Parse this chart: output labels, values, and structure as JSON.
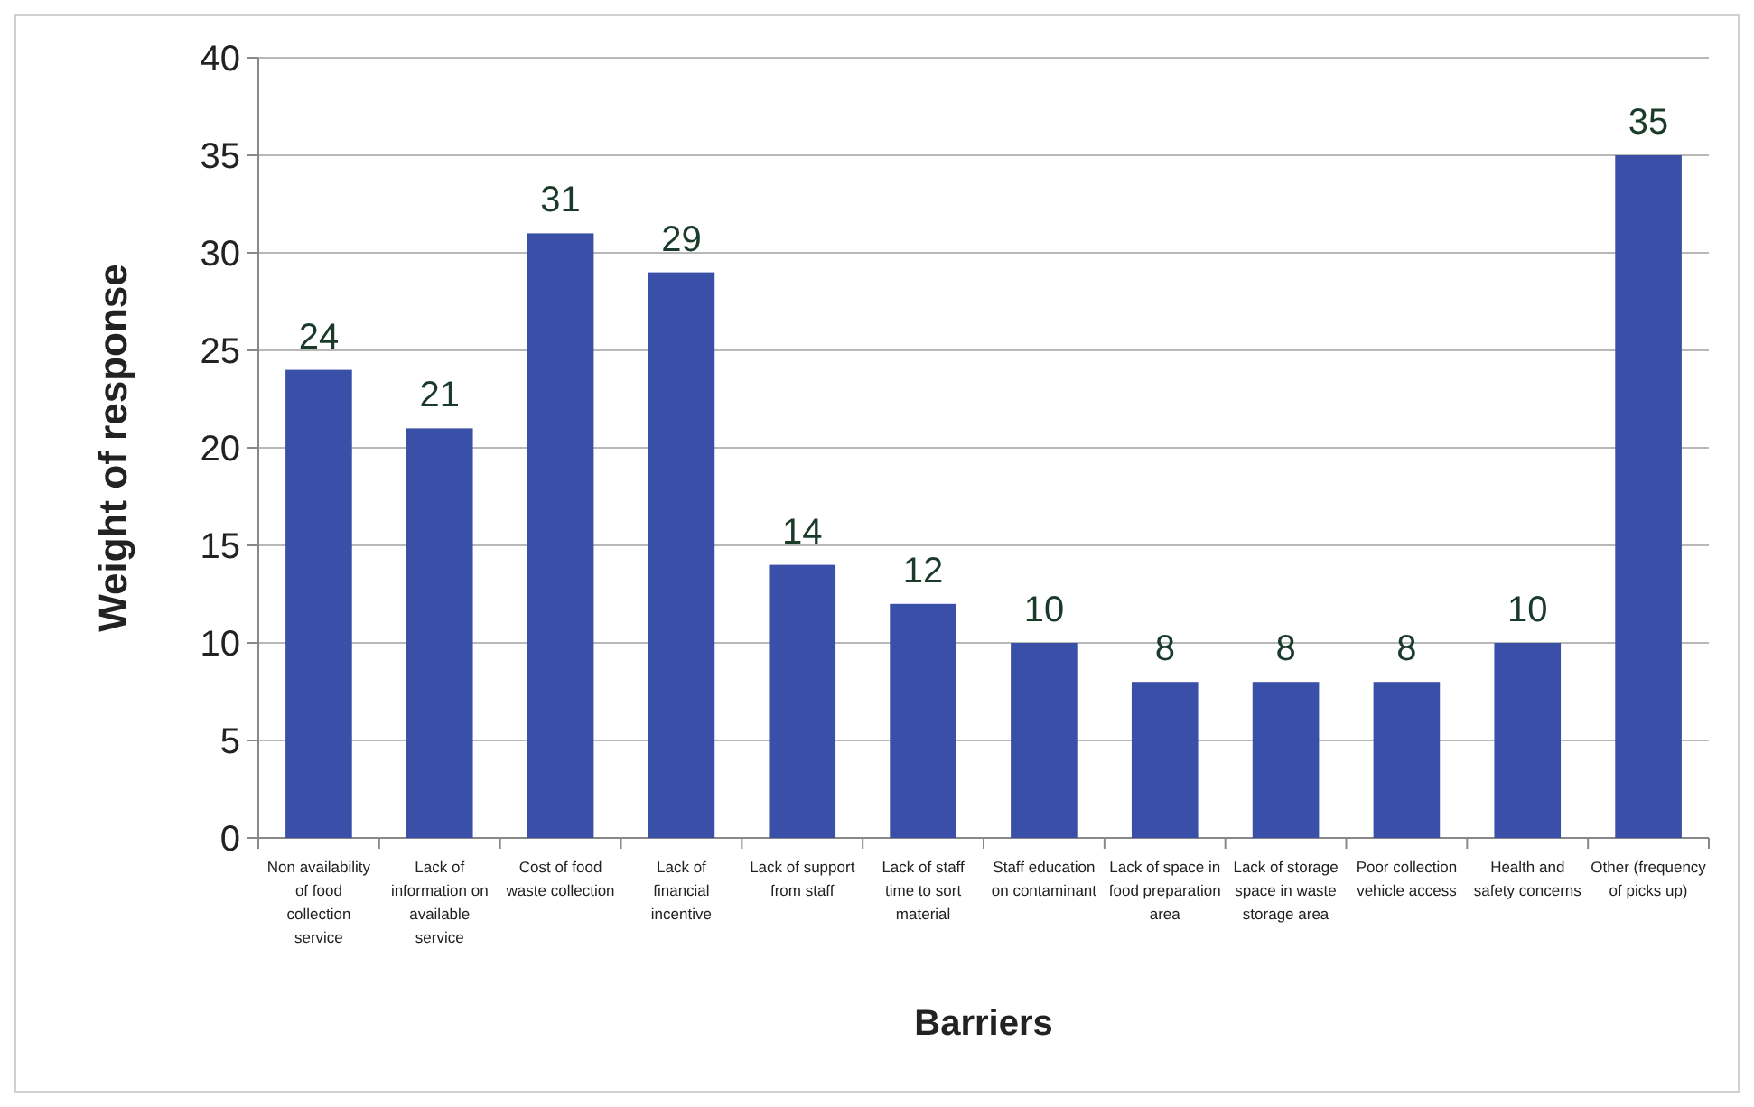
{
  "chart_data": {
    "type": "bar",
    "xlabel": "Barriers",
    "ylabel": "Weight of response",
    "categories": [
      "Non availability of food collection service",
      "Lack of information on available service",
      "Cost of food waste collection",
      "Lack of financial incentive",
      "Lack of support from staff",
      "Lack of staff time to sort material",
      "Staff education on contaminant",
      "Lack of space in food preparation area",
      "Lack of storage space in waste storage area",
      "Poor collection vehicle access",
      "Health and safety concerns",
      "Other (frequency of picks up)"
    ],
    "values": [
      24,
      21,
      31,
      29,
      14,
      12,
      10,
      8,
      8,
      8,
      10,
      35
    ],
    "color": "#3a4fa8",
    "ylim": [
      0,
      40
    ],
    "yticks": [
      0,
      5,
      10,
      15,
      20,
      25,
      30,
      35,
      40
    ],
    "grid": "y",
    "data_labels": true
  }
}
